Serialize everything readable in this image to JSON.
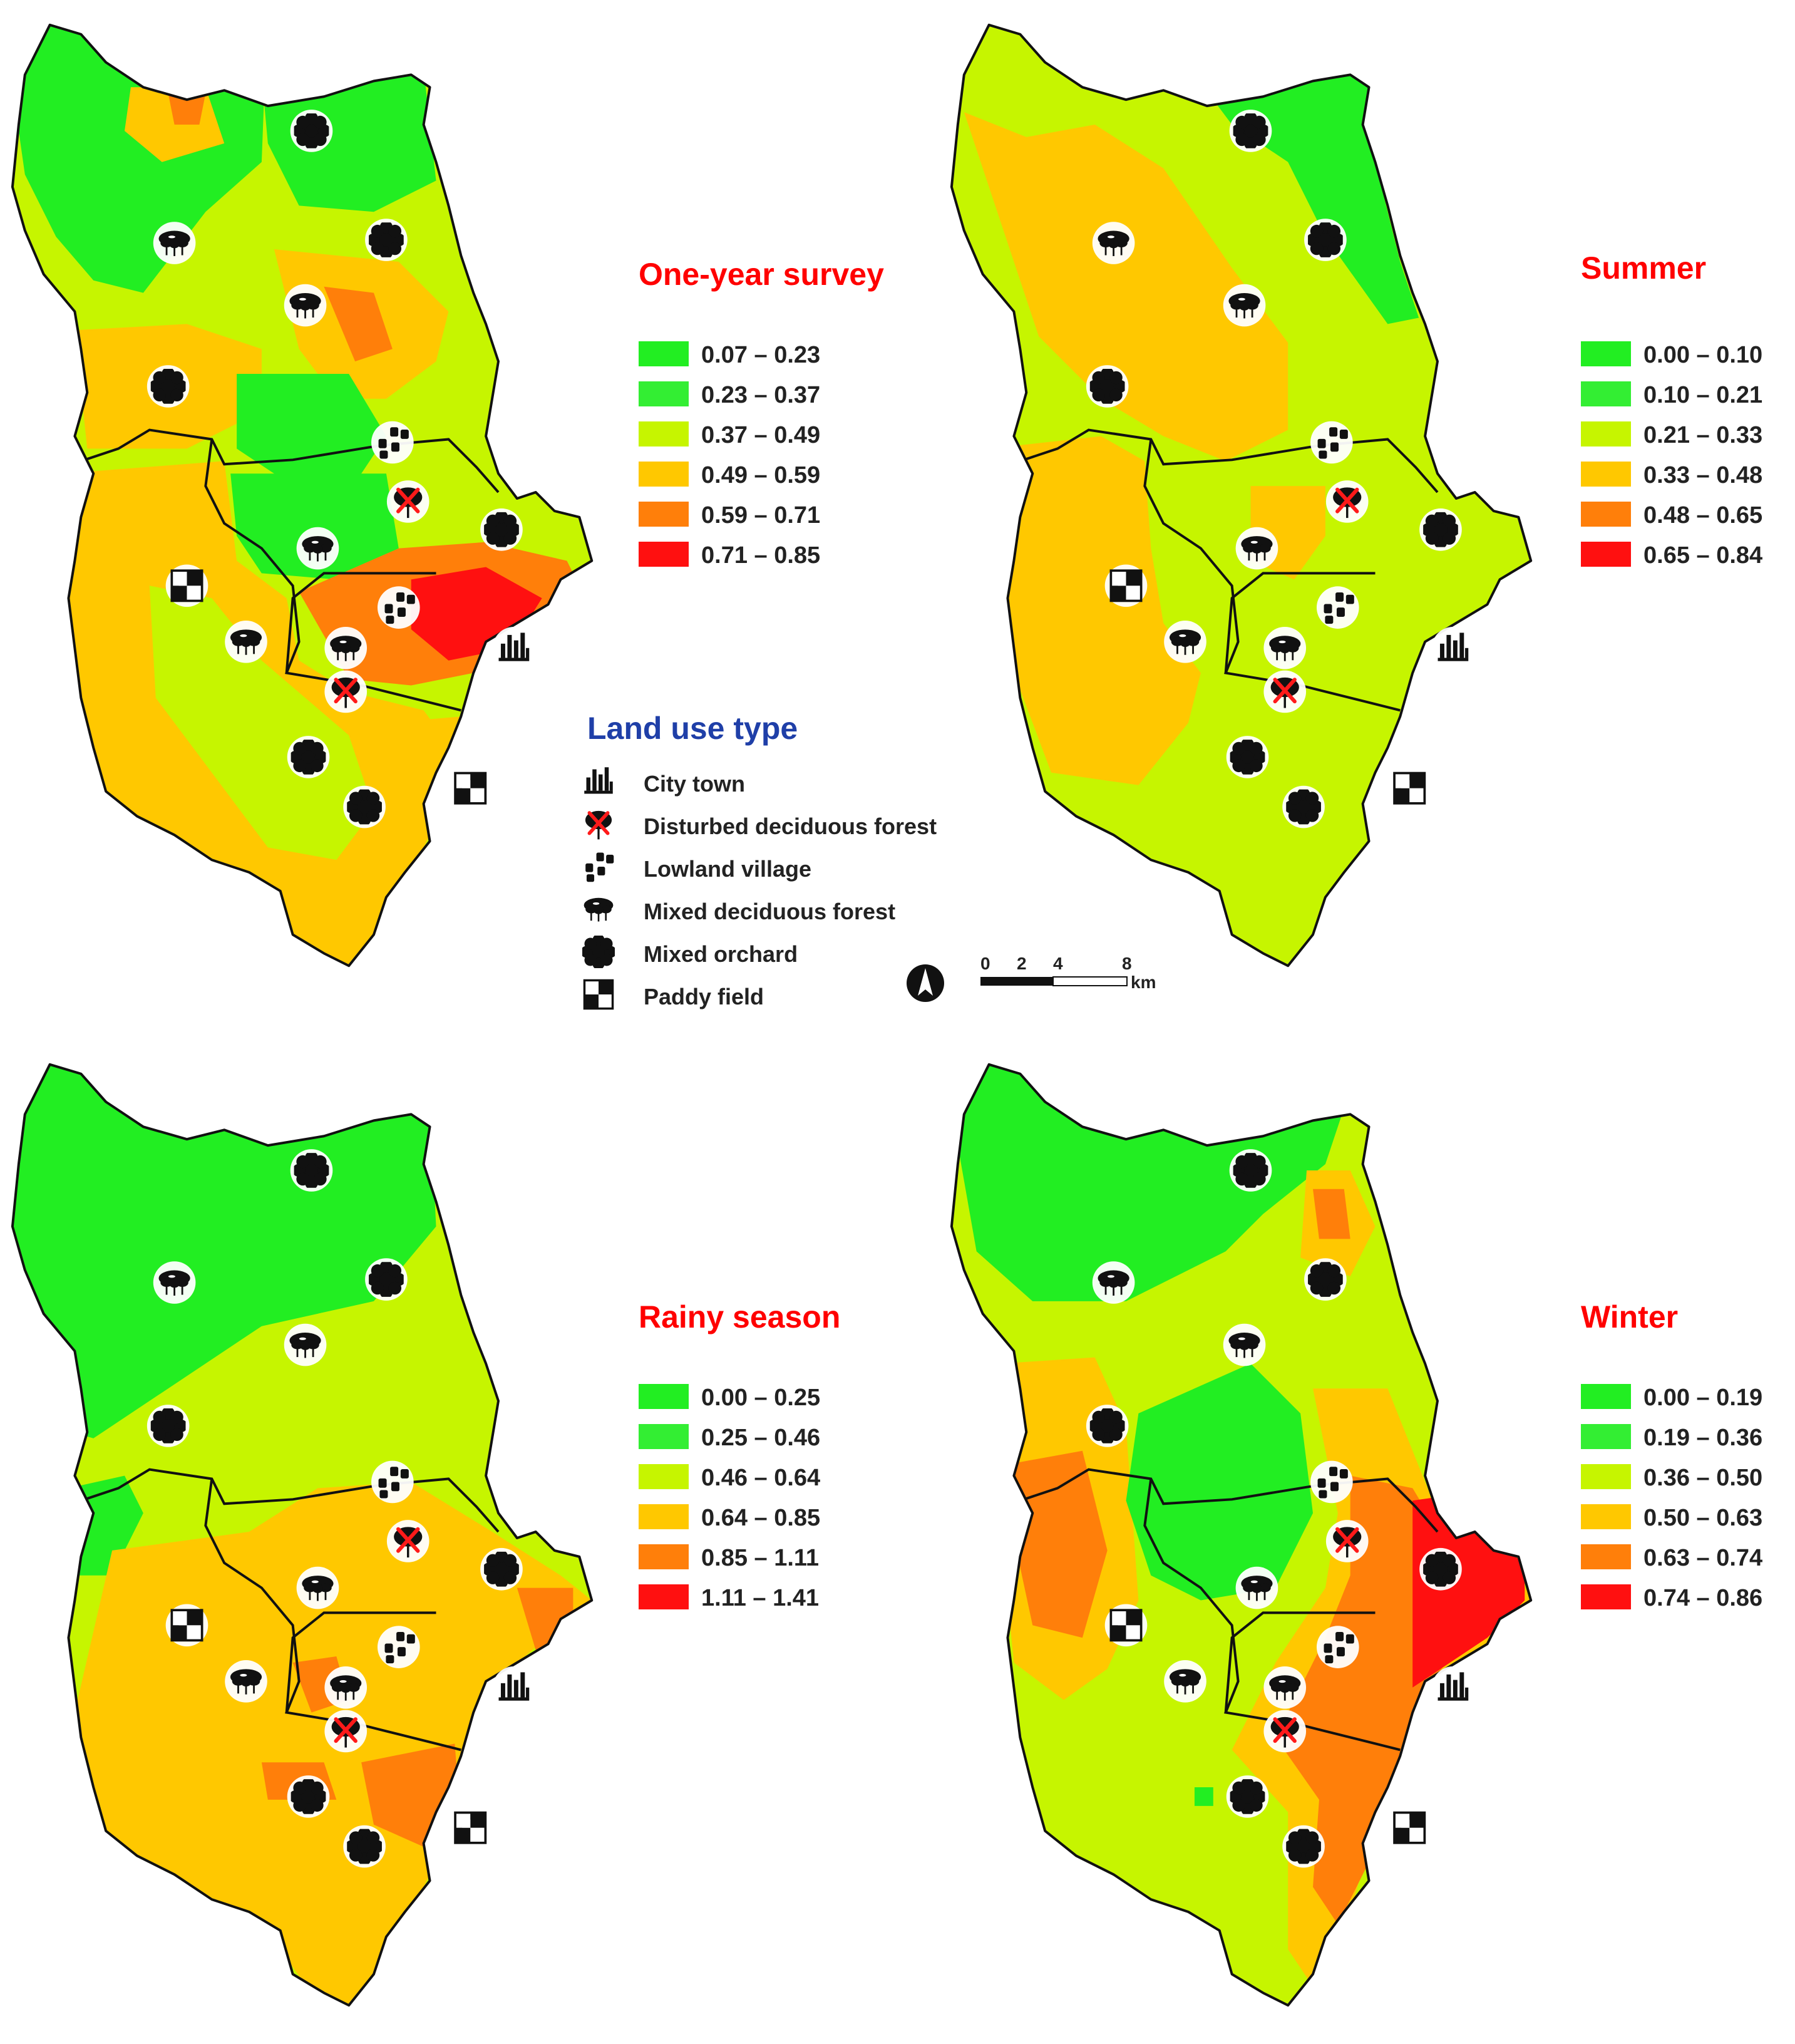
{
  "panels": [
    {
      "id": "one-year",
      "title": "One-year survey",
      "legend": [
        "0.07 – 0.23",
        "0.23 – 0.37",
        "0.37 – 0.49",
        "0.49 – 0.59",
        "0.59 – 0.71",
        "0.71 – 0.85"
      ]
    },
    {
      "id": "summer",
      "title": "Summer",
      "legend": [
        "0.00 – 0.10",
        "0.10 – 0.21",
        "0.21 – 0.33",
        "0.33 – 0.48",
        "0.48 – 0.65",
        "0.65 – 0.84"
      ]
    },
    {
      "id": "rainy",
      "title": "Rainy season",
      "legend": [
        "0.00 – 0.25",
        "0.25 – 0.46",
        "0.46 – 0.64",
        "0.64 – 0.85",
        "0.85 – 1.11",
        "1.11 – 1.41"
      ]
    },
    {
      "id": "winter",
      "title": "Winter",
      "legend": [
        "0.00 – 0.19",
        "0.19 – 0.36",
        "0.36 – 0.50",
        "0.50 – 0.63",
        "0.63 – 0.74",
        "0.74 – 0.86"
      ]
    }
  ],
  "class_colors": [
    "#22ee22",
    "#33ee33",
    "#c6f500",
    "#ffc800",
    "#ff7f0a",
    "#ff1010"
  ],
  "land_use": {
    "title": "Land use type",
    "items": [
      {
        "icon": "city-town-icon",
        "label": "City town"
      },
      {
        "icon": "disturbed-forest-icon",
        "label": "Disturbed deciduous forest"
      },
      {
        "icon": "lowland-village-icon",
        "label": "Lowland village"
      },
      {
        "icon": "mixed-forest-icon",
        "label": "Mixed deciduous forest"
      },
      {
        "icon": "mixed-orchard-icon",
        "label": "Mixed orchard"
      },
      {
        "icon": "paddy-field-icon",
        "label": "Paddy field"
      }
    ]
  },
  "scale_bar": {
    "ticks": [
      "0",
      "2",
      "4",
      "8"
    ],
    "unit": "km"
  }
}
